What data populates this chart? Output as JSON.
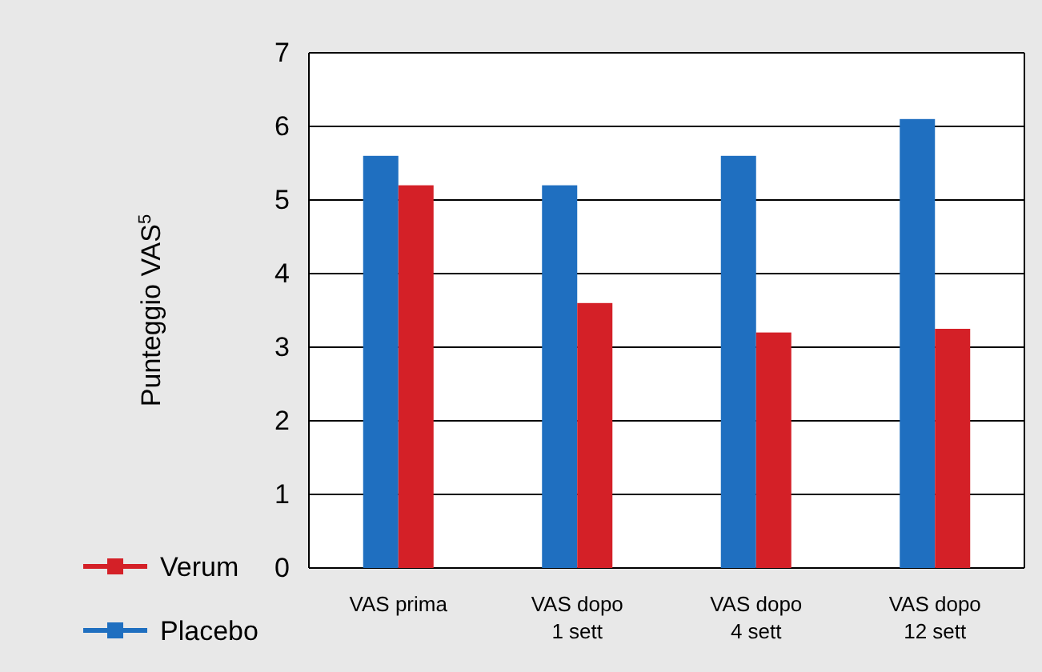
{
  "chart_data": {
    "type": "bar",
    "ylabel": "Punteggio VAS$^{5}$",
    "categories": [
      "VAS prima",
      "VAS dopo\n1 sett",
      "VAS dopo\n4 sett",
      "VAS dopo\n12 sett"
    ],
    "series": [
      {
        "name": "Placebo",
        "color": "#1f6fc0",
        "values": [
          5.6,
          5.2,
          5.6,
          6.1
        ]
      },
      {
        "name": "Verum",
        "color": "#d42027",
        "values": [
          5.2,
          3.6,
          3.2,
          3.25
        ]
      }
    ],
    "ylim": [
      0,
      7
    ],
    "yticks": [
      0,
      1,
      2,
      3,
      4,
      5,
      6,
      7
    ],
    "grid": "y",
    "legend": "bottom left"
  }
}
